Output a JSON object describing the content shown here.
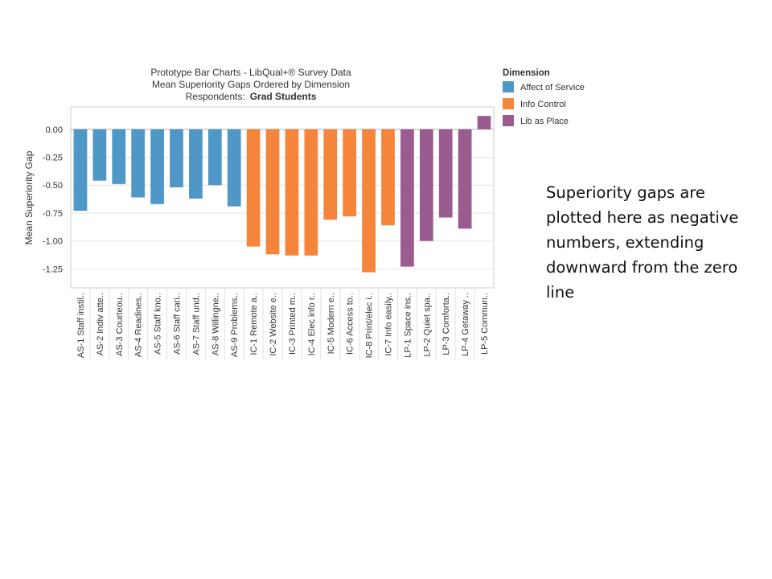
{
  "chart_data": {
    "type": "bar",
    "title_lines": [
      "Prototype Bar Charts - LibQual+® Survey Data",
      "Mean Superiority Gaps Ordered by Dimension"
    ],
    "respondents_label": "Respondents:",
    "respondents_value": "Grad Students",
    "ylabel": "Mean Superiority Gap",
    "xlabel": "",
    "ylim": [
      -1.42,
      0.2
    ],
    "yticks": [
      0.0,
      -0.25,
      -0.5,
      -0.75,
      -1.0,
      -1.25
    ],
    "ytick_labels": [
      "0.00",
      "-0.25",
      "-0.50",
      "-0.75",
      "-1.00",
      "-1.25"
    ],
    "grid": true,
    "legend": {
      "position": "right",
      "title": "Dimension",
      "entries": [
        {
          "name": "Affect of Service",
          "color": "#4f97c7"
        },
        {
          "name": "Info Control",
          "color": "#f5853b"
        },
        {
          "name": "Lib as Place",
          "color": "#9a5c8f"
        }
      ]
    },
    "categories": [
      "AS-1 Staff instil..",
      "AS-2 Indiv atte..",
      "AS-3 Courteou..",
      "AS-4 Readines..",
      "AS-5 Staff kno..",
      "AS-6 Staff cari..",
      "AS-7 Staff und..",
      "AS-8 Willingne..",
      "AS-9 Problems..",
      "IC-1 Remote a..",
      "IC-2 Website e..",
      "IC-3 Printed m..",
      "IC-4 Elec info r..",
      "IC-5 Modern e..",
      "IC-6 Access to..",
      "IC-8 Print/elec i..",
      "IC-7 Info easily..",
      "LP-1 Space ins..",
      "LP-2 Quiet spa..",
      "LP-3 Comforta..",
      "LP-4 Getaway ..",
      "LP-5 Commun.."
    ],
    "values": [
      -0.73,
      -0.46,
      -0.49,
      -0.61,
      -0.67,
      -0.52,
      -0.62,
      -0.5,
      -0.69,
      -1.05,
      -1.12,
      -1.13,
      -1.13,
      -0.81,
      -0.78,
      -1.28,
      -0.86,
      -1.23,
      -1.0,
      -0.79,
      -0.89,
      0.12
    ],
    "dimension": [
      "Affect of Service",
      "Affect of Service",
      "Affect of Service",
      "Affect of Service",
      "Affect of Service",
      "Affect of Service",
      "Affect of Service",
      "Affect of Service",
      "Affect of Service",
      "Info Control",
      "Info Control",
      "Info Control",
      "Info Control",
      "Info Control",
      "Info Control",
      "Info Control",
      "Info Control",
      "Lib as Place",
      "Lib as Place",
      "Lib as Place",
      "Lib as Place",
      "Lib as Place"
    ]
  },
  "side_note": "Superiority gaps are plotted here as negative numbers, extending downward from the zero line"
}
